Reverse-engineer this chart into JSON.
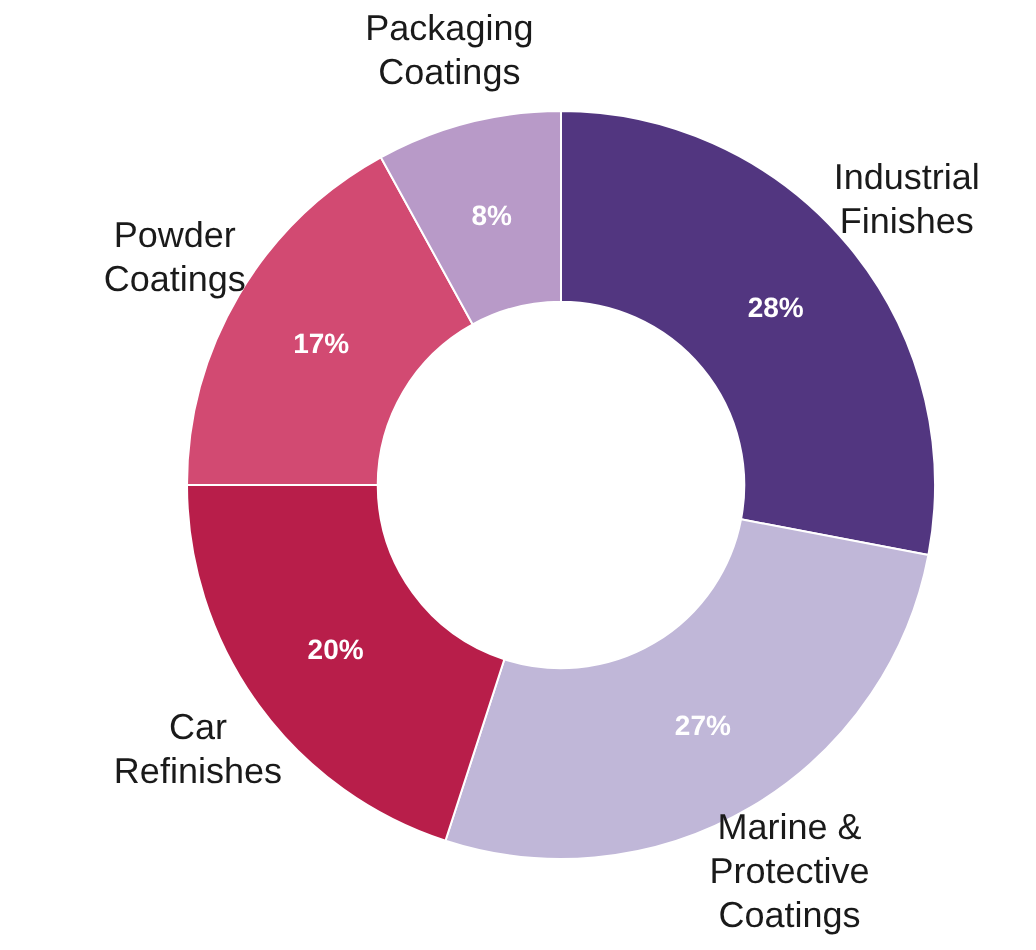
{
  "chart_data": {
    "type": "donut",
    "categories": [
      "Industrial Finishes",
      "Marine & Protective Coatings",
      "Car Refinishes",
      "Powder Coatings",
      "Packaging Coatings"
    ],
    "values": [
      28,
      27,
      20,
      17,
      8
    ],
    "colors": [
      "#523680",
      "#c0b7d8",
      "#b81e4a",
      "#d24a72",
      "#b89ac8"
    ],
    "value_labels": [
      "28%",
      "27%",
      "20%",
      "17%",
      "8%"
    ]
  }
}
